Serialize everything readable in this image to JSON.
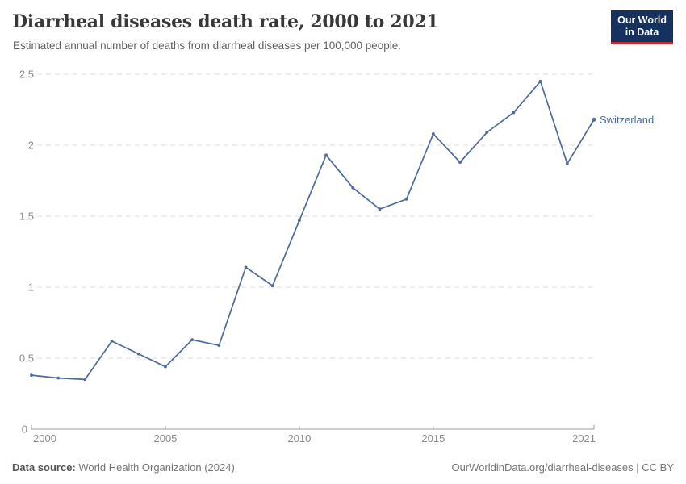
{
  "header": {
    "title": "Diarrheal diseases death rate, 2000 to 2021",
    "subtitle": "Estimated annual number of deaths from diarrheal diseases per 100,000 people."
  },
  "logo": {
    "line1": "Our World",
    "line2": "in Data",
    "bg_color": "#14315f",
    "accent_color": "#c5292e"
  },
  "chart_data": {
    "type": "line",
    "title": "Diarrheal diseases death rate, 2000 to 2021",
    "xlabel": "",
    "ylabel": "",
    "xlim": [
      2000,
      2021
    ],
    "ylim": [
      0,
      2.5
    ],
    "grid": "horizontal-dashed",
    "legend_position": "end-of-line-label",
    "x": [
      2000,
      2001,
      2002,
      2003,
      2004,
      2005,
      2006,
      2007,
      2008,
      2009,
      2010,
      2011,
      2012,
      2013,
      2014,
      2015,
      2016,
      2017,
      2018,
      2019,
      2020,
      2021
    ],
    "series": [
      {
        "name": "Switzerland",
        "color": "#4c6a9c",
        "values": [
          0.38,
          0.36,
          0.35,
          0.62,
          0.53,
          0.44,
          0.63,
          0.59,
          1.14,
          1.01,
          1.47,
          1.93,
          1.7,
          1.55,
          1.62,
          2.08,
          1.88,
          2.09,
          2.23,
          2.45,
          1.87,
          2.18
        ]
      }
    ],
    "x_ticks": [
      2000,
      2005,
      2010,
      2015,
      2021
    ],
    "y_ticks": [
      0,
      0.5,
      1,
      1.5,
      2,
      2.5
    ],
    "grid_color": "#dcdcdc",
    "axis_color": "#9c9c9c",
    "tick_label_color": "#8a8a8a"
  },
  "footer": {
    "datasource_label": "Data source:",
    "datasource_value": "World Health Organization (2024)",
    "citation": "OurWorldinData.org/diarrheal-diseases | CC BY"
  }
}
